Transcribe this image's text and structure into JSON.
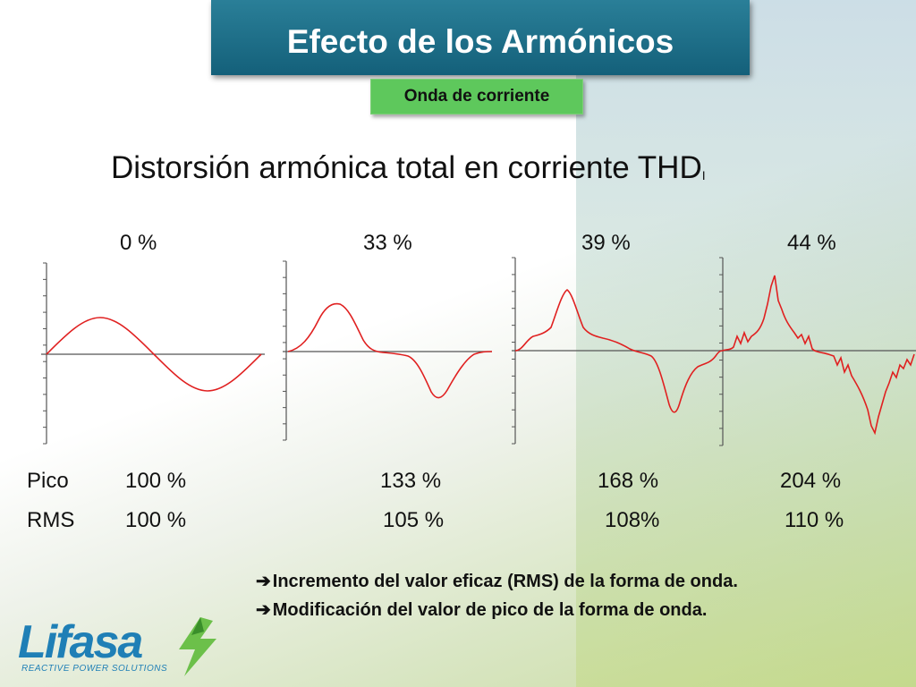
{
  "title": "Efecto de los Armónicos",
  "subtitle": "Onda de corriente",
  "heading": {
    "text": "Distorsión armónica total en corriente THD",
    "sub": "I"
  },
  "thd_labels": [
    "0 %",
    "33 %",
    "39 %",
    "44 %"
  ],
  "rows": {
    "pico": {
      "label": "Pico",
      "values": [
        "100 %",
        "133 %",
        "168 %",
        "204 %"
      ]
    },
    "rms": {
      "label": "RMS",
      "values": [
        "100 %",
        "105 %",
        "108%",
        "110 %"
      ]
    }
  },
  "bullets": [
    "Incremento del valor eficaz (RMS) de la forma de onda.",
    "Modificación del valor de pico de la forma de onda."
  ],
  "bullet_icon": "right-arrow-icon",
  "logo": {
    "name": "Lifasa",
    "tagline": "REACTIVE POWER SOLUTIONS",
    "icon": "lightning-bolt-icon"
  },
  "colors": {
    "title_bg": "#14607a",
    "badge_bg": "#5ec85c",
    "wave": "#e02020",
    "logo": "#1f7fb6",
    "bolt": "#6cc04a"
  },
  "chart_data": {
    "type": "line",
    "x": [
      0,
      45,
      90,
      135,
      180,
      225,
      270,
      315,
      360
    ],
    "series": [
      {
        "values": [
          0,
          0.71,
          1.0,
          0.71,
          0,
          -0.71,
          -1.0,
          -0.71,
          0
        ]
      },
      {
        "values": [
          0,
          0.55,
          1.33,
          0.55,
          0,
          -0.55,
          -1.33,
          -0.55,
          0
        ]
      },
      {
        "values": [
          0,
          0.35,
          1.68,
          0.35,
          0,
          -0.35,
          -1.68,
          -0.35,
          0
        ]
      },
      {
        "values": [
          0,
          0.4,
          2.04,
          0.4,
          0,
          -0.4,
          -2.04,
          -0.4,
          0
        ]
      }
    ]
  }
}
